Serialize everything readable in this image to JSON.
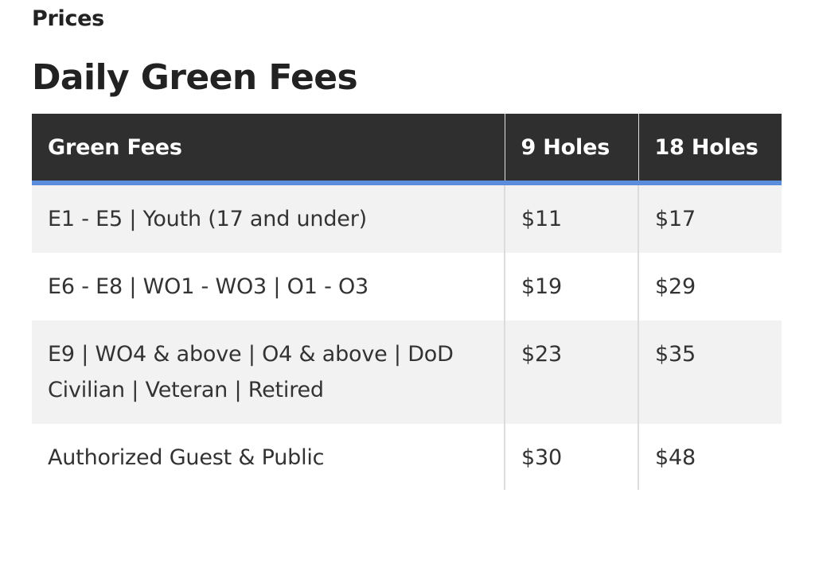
{
  "page": {
    "eyebrow": "Prices",
    "heading": "Daily Green Fees"
  },
  "table": {
    "header_color": "#2f2f2f",
    "accent_color": "#5b8ddb",
    "columns": [
      "Green Fees",
      "9 Holes",
      "18 Holes"
    ],
    "rows": [
      {
        "category": "E1 - E5  |  Youth (17 and under)",
        "nine_holes": "$11",
        "eighteen_holes": "$17"
      },
      {
        "category": "E6 - E8  |  WO1 - WO3  |  O1 - O3",
        "nine_holes": "$19",
        "eighteen_holes": "$29"
      },
      {
        "category": "E9  |  WO4 & above  | O4 & above  |  DoD Civilian  |  Veteran  |  Retired",
        "nine_holes": "$23",
        "eighteen_holes": "$35"
      },
      {
        "category": "Authorized Guest & Public",
        "nine_holes": "$30",
        "eighteen_holes": "$48"
      }
    ]
  }
}
